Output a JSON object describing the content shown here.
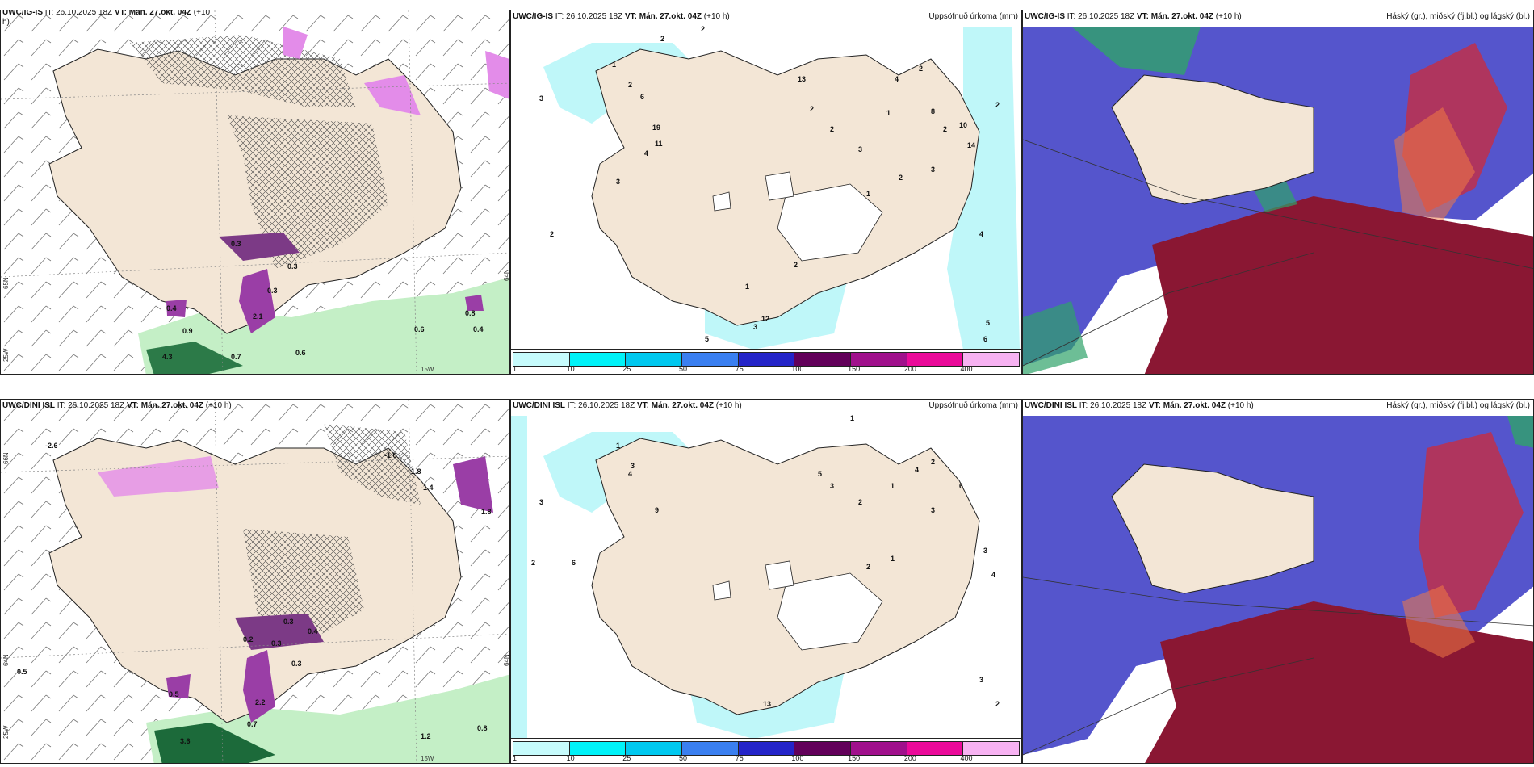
{
  "colors": {
    "land": "#f3e6d6",
    "coast": "#222222",
    "precip_light": "#bff7f9",
    "precip_cyan": "#00e8f0",
    "ice_purple": "#9a3ea6",
    "ice_light": "#e38ce9",
    "rain_green": "#b9eec0",
    "rain_dark": "#1c6a3a",
    "cloud_high": "#2fa36a",
    "cloud_mid": "#4747c8",
    "cloud_low": "#8a1733"
  },
  "colorbar": {
    "colors": [
      "#c6fbfc",
      "#00f2f8",
      "#00c8ef",
      "#3a7ff0",
      "#2424c8",
      "#62005a",
      "#a0108c",
      "#ea0a9a",
      "#f7b2f2"
    ],
    "ticks": [
      "1",
      "10",
      "25",
      "50",
      "75",
      "100",
      "150",
      "200",
      "400"
    ]
  },
  "panels": [
    {
      "id": "top-left",
      "model": "UWC/IG-IS",
      "it_label": "IT:",
      "it_value": "26.10.2025 18Z",
      "vt_label": "VT:",
      "vt_value": "Mán. 27.okt. 04Z",
      "lead": "(+10",
      "lead2": "h)",
      "right_title": "",
      "axes": {
        "left_lat_1": "65N",
        "left_lat_2": "25W",
        "bottom_lon": "15W",
        "right_lat": "64N"
      },
      "labels": [
        "0.4",
        "0.3",
        "2.1",
        "0.6",
        "0.6",
        "0.8",
        "0.4",
        "0.7",
        "4.3",
        "0.9",
        "0.3",
        "0.3"
      ]
    },
    {
      "id": "top-middle",
      "model": "UWC/IG-IS",
      "it_label": "IT:",
      "it_value": "26.10.2025 18Z",
      "vt_label": "VT:",
      "vt_value": "Mán. 27.okt. 04Z",
      "lead": "(+10 h)",
      "right_title": "Uppsöfnuð úrkoma (mm)",
      "labels": [
        "2",
        "2",
        "3",
        "1",
        "2",
        "6",
        "19",
        "11",
        "4",
        "3",
        "2",
        "13",
        "2",
        "2",
        "3",
        "1",
        "4",
        "2",
        "8",
        "2",
        "10",
        "14",
        "3",
        "2",
        "1",
        "2",
        "4",
        "5",
        "6",
        "12",
        "3",
        "5",
        "2",
        "1"
      ]
    },
    {
      "id": "top-right",
      "model": "UWC/IG-IS",
      "it_label": "IT:",
      "it_value": "26.10.2025 18Z",
      "vt_label": "VT:",
      "vt_value": "Mán. 27.okt. 04Z",
      "lead": "(+10 h)",
      "right_title": "Háský (gr.), miðský (fj.bl.) og lágský (bl.)"
    },
    {
      "id": "bottom-left",
      "model": "UWC/DINI ISL",
      "it_label": "IT:",
      "it_value": "26.10.2025 18Z",
      "vt_label": "VT:",
      "vt_value": "Mán. 27.okt. 04Z",
      "lead": "(+10 h)",
      "right_title": "",
      "axes": {
        "left_lat_1": "66N",
        "left_lat_2": "64N",
        "left_lat_3": "25W",
        "bottom_lon": "15W",
        "right_lat": "64N"
      },
      "labels": [
        "-2.6",
        "-1.0",
        "-1.8",
        "-1.4",
        "1.8",
        "0.5",
        "0.3",
        "0.2",
        "0.3",
        "0.4",
        "0.3",
        "0.5",
        "0.7",
        "2.2",
        "3.6",
        "0.8",
        "1.2"
      ]
    },
    {
      "id": "bottom-middle",
      "model": "UWC/DINI ISL",
      "it_label": "IT:",
      "it_value": "26.10.2025 18Z",
      "vt_label": "VT:",
      "vt_value": "Mán. 27.okt. 04Z",
      "lead": "(+10 h)",
      "right_title": "Uppsöfnuð úrkoma (mm)",
      "labels": [
        "1",
        "3",
        "2",
        "4",
        "9",
        "6",
        "3",
        "1",
        "5",
        "3",
        "2",
        "1",
        "4",
        "2",
        "6",
        "3",
        "3",
        "4",
        "13",
        "2",
        "1",
        "3",
        "2"
      ]
    },
    {
      "id": "bottom-right",
      "model": "UWC/DINI ISL",
      "it_label": "IT:",
      "it_value": "26.10.2025 18Z",
      "vt_label": "VT:",
      "vt_value": "Mán. 27.okt. 04Z",
      "lead": "(+10 h)",
      "right_title": "Háský (gr.), miðský (fj.bl.) og lágský (bl.)"
    }
  ]
}
